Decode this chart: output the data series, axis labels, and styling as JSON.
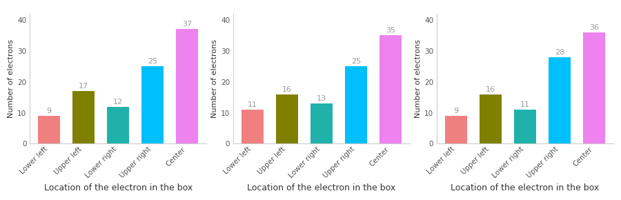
{
  "charts": [
    {
      "values": [
        9,
        17,
        12,
        25,
        37
      ],
      "categories": [
        "Lower left",
        "Upper left",
        "Lower right",
        "Upper right",
        "Center"
      ]
    },
    {
      "values": [
        11,
        16,
        13,
        25,
        35
      ],
      "categories": [
        "Lower left",
        "Upper left",
        "Lower right",
        "Upper right",
        "Center"
      ]
    },
    {
      "values": [
        9,
        16,
        11,
        28,
        36
      ],
      "categories": [
        "Lower left",
        "Upper left",
        "Lower right",
        "Upper right",
        "Center"
      ]
    }
  ],
  "bar_colors": [
    "#F08080",
    "#808000",
    "#20B2AA",
    "#00BFFF",
    "#EE82EE"
  ],
  "ylabel": "Number of electrons",
  "xlabel": "Location of the electron in the box",
  "ylim": [
    0,
    42
  ],
  "yticks": [
    0,
    10,
    20,
    30,
    40
  ],
  "background_color": "#ffffff",
  "value_label_color": "#999999",
  "value_label_fontsize": 8,
  "xlabel_fontsize": 9,
  "ylabel_fontsize": 8,
  "tick_label_fontsize": 7.5
}
